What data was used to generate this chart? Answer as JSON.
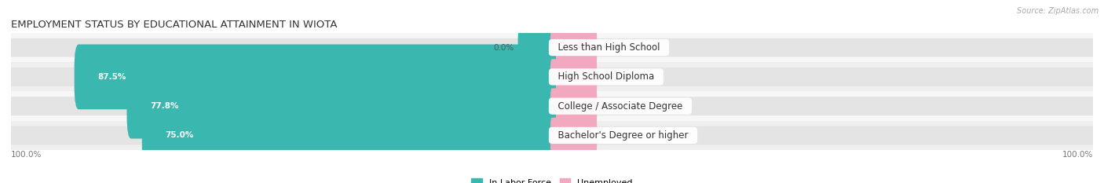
{
  "title": "EMPLOYMENT STATUS BY EDUCATIONAL ATTAINMENT IN WIOTA",
  "source": "Source: ZipAtlas.com",
  "categories": [
    "Less than High School",
    "High School Diploma",
    "College / Associate Degree",
    "Bachelor's Degree or higher"
  ],
  "in_labor_force": [
    0.0,
    87.5,
    77.8,
    75.0
  ],
  "unemployed": [
    0.0,
    0.0,
    0.0,
    0.0
  ],
  "labor_color": "#3ab8b0",
  "unemployed_color": "#f2a8be",
  "bg_bar_color": "#e4e4e4",
  "bg_row_color": "#f5f5f5",
  "xlim_left": -100.0,
  "xlim_right": 100.0,
  "left_label": "100.0%",
  "right_label": "100.0%",
  "legend_labor": "In Labor Force",
  "legend_unemployed": "Unemployed",
  "title_fontsize": 9.5,
  "source_fontsize": 7,
  "value_fontsize": 7.5,
  "category_fontsize": 8.5,
  "figsize": [
    14.06,
    2.33
  ],
  "dpi": 100,
  "bar_height": 0.62,
  "unemployed_bar_width": 8.0
}
